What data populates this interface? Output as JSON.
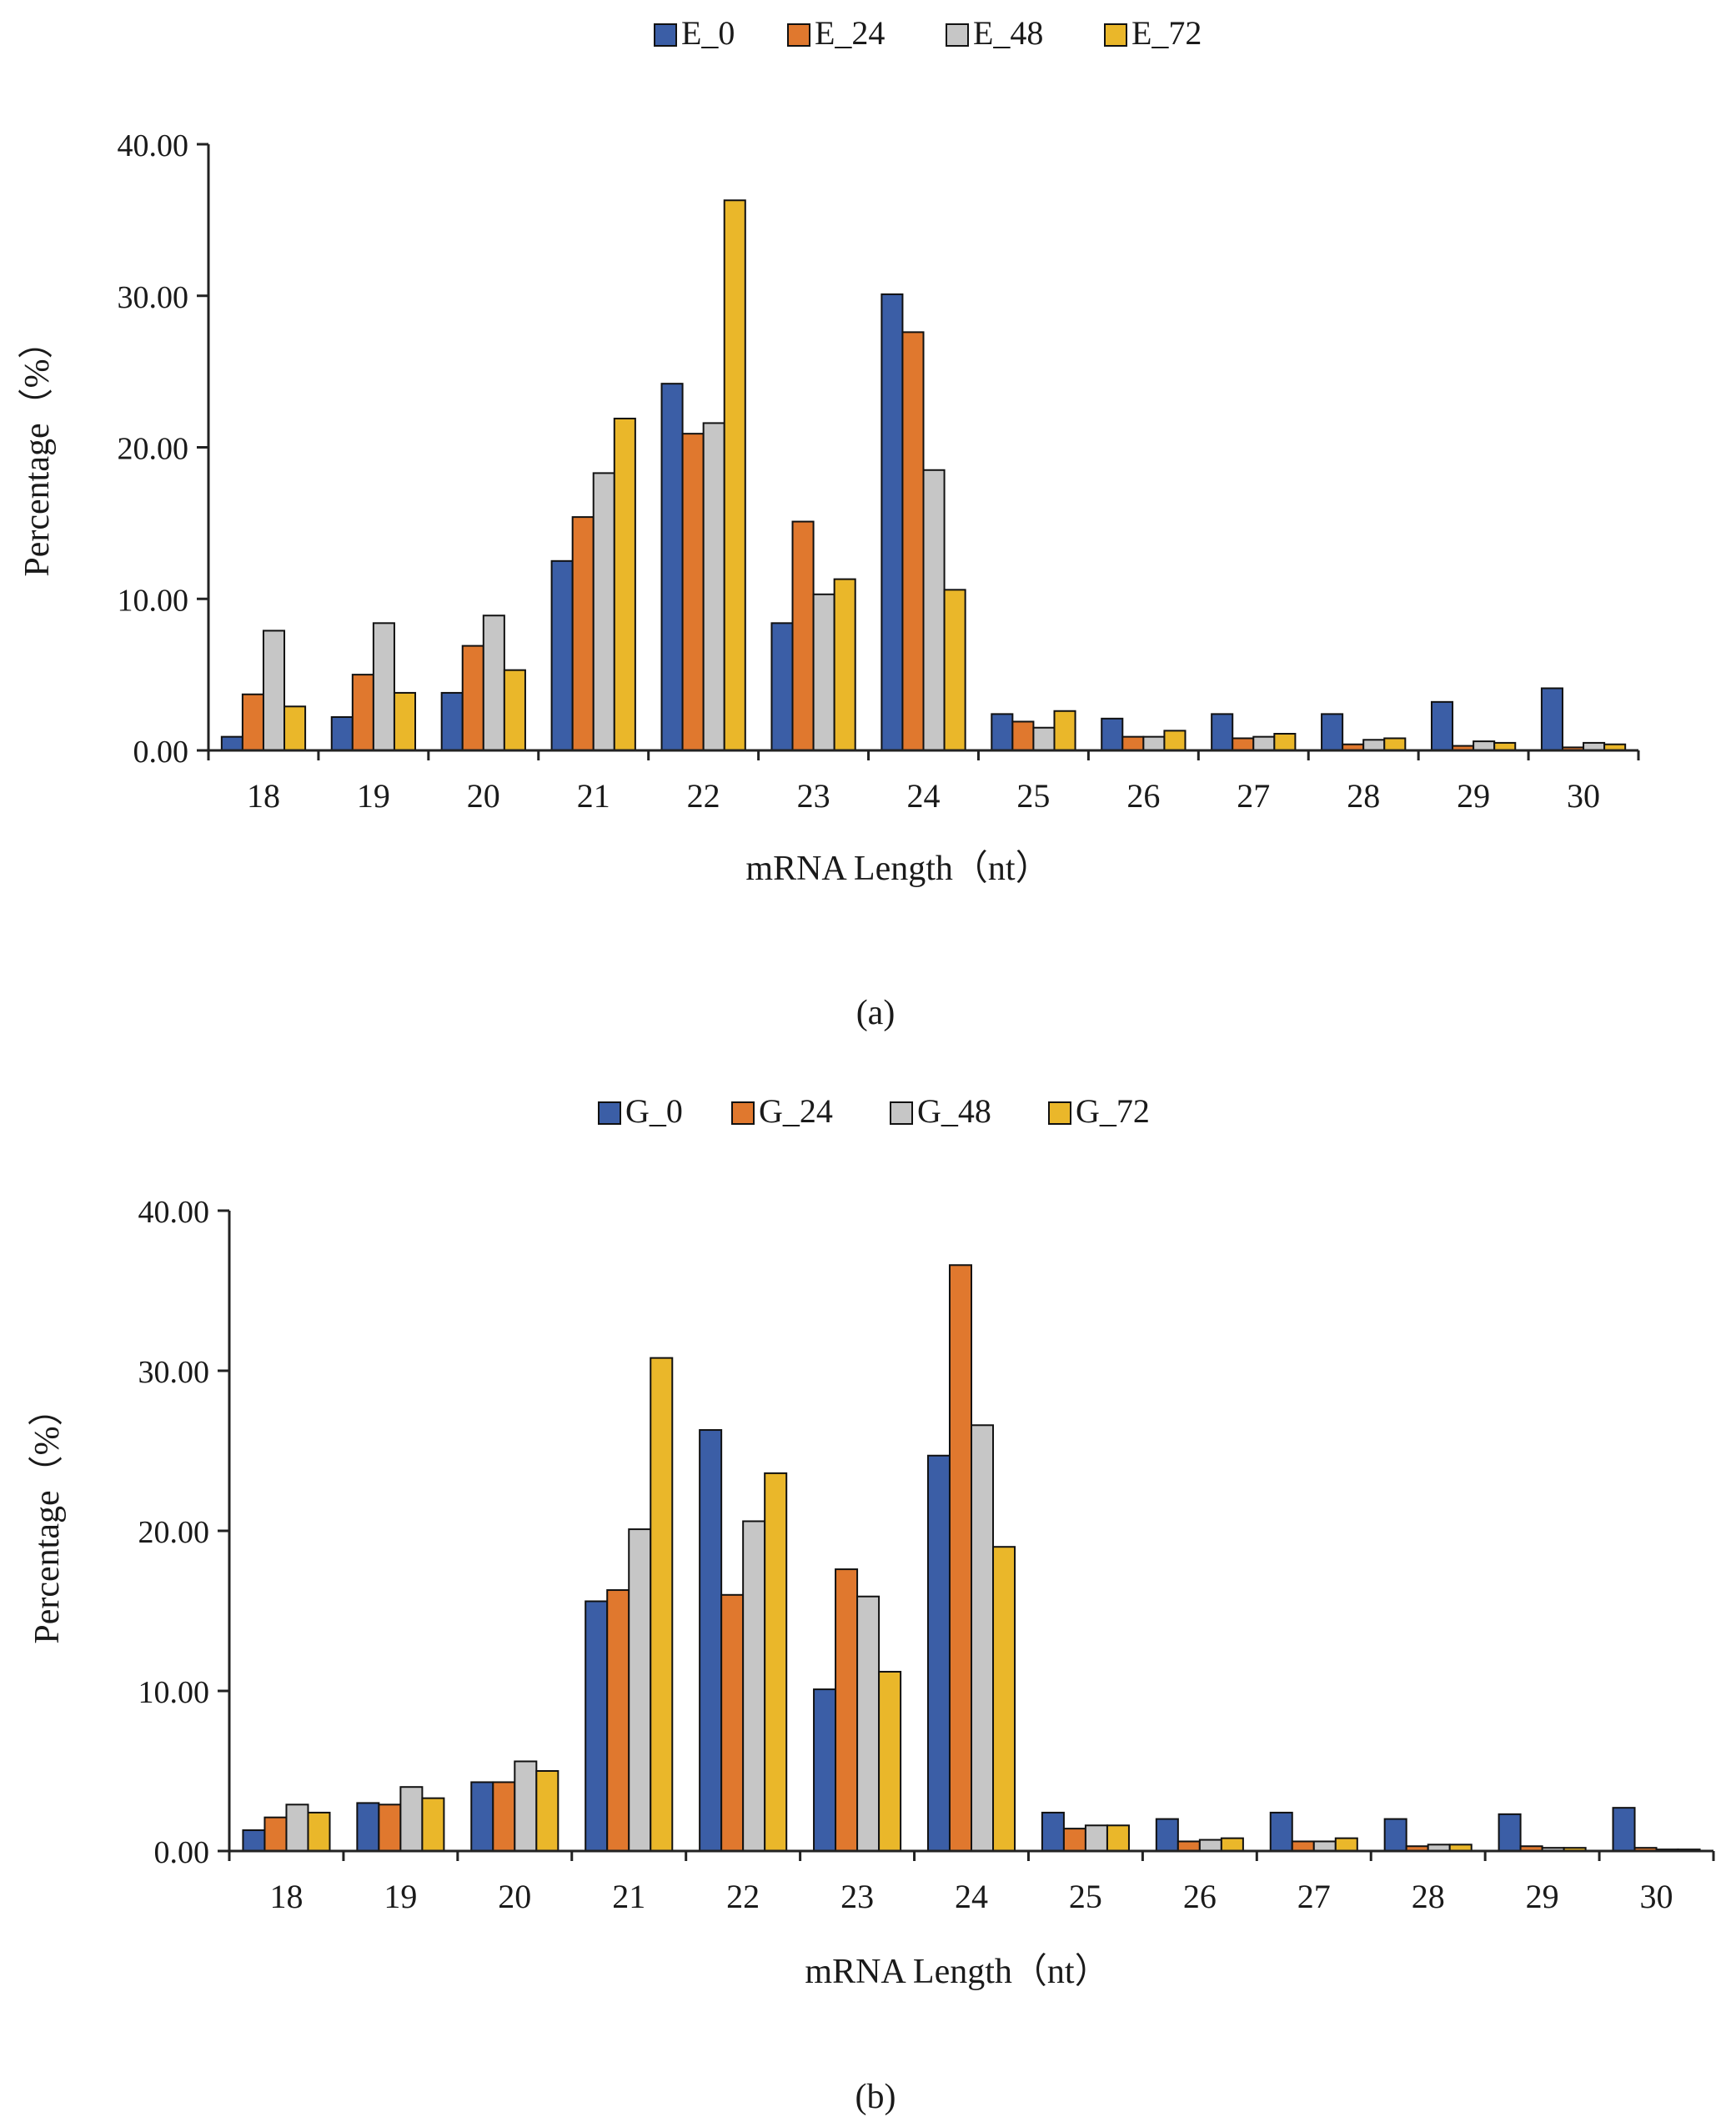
{
  "colors": {
    "blue": "#3b5ea6",
    "orange": "#e0782e",
    "gray": "#c6c6c6",
    "gold": "#eab72a",
    "stroke": "#111111",
    "axis": "#222222"
  },
  "chart_data": [
    {
      "type": "bar",
      "panel_label": "(a)",
      "title": "",
      "xlabel": "mRNA Length（nt）",
      "ylabel": "Percentage（%）",
      "ylim": [
        0,
        40
      ],
      "yticks": [
        "0.00",
        "10.00",
        "20.00",
        "30.00",
        "40.00"
      ],
      "categories": [
        "18",
        "19",
        "20",
        "21",
        "22",
        "23",
        "24",
        "25",
        "26",
        "27",
        "28",
        "29",
        "30"
      ],
      "legend_position": "top-center",
      "grid": false,
      "series": [
        {
          "name": "E_0",
          "color_key": "blue",
          "values": [
            0.9,
            2.2,
            3.8,
            12.5,
            24.2,
            8.4,
            30.1,
            2.4,
            2.1,
            2.4,
            2.4,
            3.2,
            4.1
          ]
        },
        {
          "name": "E_24",
          "color_key": "orange",
          "values": [
            3.7,
            5.0,
            6.9,
            15.4,
            20.9,
            15.1,
            27.6,
            1.9,
            0.9,
            0.8,
            0.4,
            0.3,
            0.2
          ]
        },
        {
          "name": "E_48",
          "color_key": "gray",
          "values": [
            7.9,
            8.4,
            8.9,
            18.3,
            21.6,
            10.3,
            18.5,
            1.5,
            0.9,
            0.9,
            0.7,
            0.6,
            0.5
          ]
        },
        {
          "name": "E_72",
          "color_key": "gold",
          "values": [
            2.9,
            3.8,
            5.3,
            21.9,
            36.3,
            11.3,
            10.6,
            2.6,
            1.3,
            1.1,
            0.8,
            0.5,
            0.4
          ]
        }
      ]
    },
    {
      "type": "bar",
      "panel_label": "(b)",
      "title": "",
      "xlabel": "mRNA Length（nt）",
      "ylabel": "Percentage（%）",
      "ylim": [
        0,
        40
      ],
      "yticks": [
        "0.00",
        "10.00",
        "20.00",
        "30.00",
        "40.00"
      ],
      "categories": [
        "18",
        "19",
        "20",
        "21",
        "22",
        "23",
        "24",
        "25",
        "26",
        "27",
        "28",
        "29",
        "30"
      ],
      "legend_position": "top-center",
      "grid": false,
      "series": [
        {
          "name": "G_0",
          "color_key": "blue",
          "values": [
            1.3,
            3.0,
            4.3,
            15.6,
            26.3,
            10.1,
            24.7,
            2.4,
            2.0,
            2.4,
            2.0,
            2.3,
            2.7
          ]
        },
        {
          "name": "G_24",
          "color_key": "orange",
          "values": [
            2.1,
            2.9,
            4.3,
            16.3,
            16.0,
            17.6,
            36.6,
            1.4,
            0.6,
            0.6,
            0.3,
            0.3,
            0.2
          ]
        },
        {
          "name": "G_48",
          "color_key": "gray",
          "values": [
            2.9,
            4.0,
            5.6,
            20.1,
            20.6,
            15.9,
            26.6,
            1.6,
            0.7,
            0.6,
            0.4,
            0.2,
            0.1
          ]
        },
        {
          "name": "G_72",
          "color_key": "gold",
          "values": [
            2.4,
            3.3,
            5.0,
            30.8,
            23.6,
            11.2,
            19.0,
            1.6,
            0.8,
            0.8,
            0.4,
            0.2,
            0.1
          ]
        }
      ]
    }
  ]
}
